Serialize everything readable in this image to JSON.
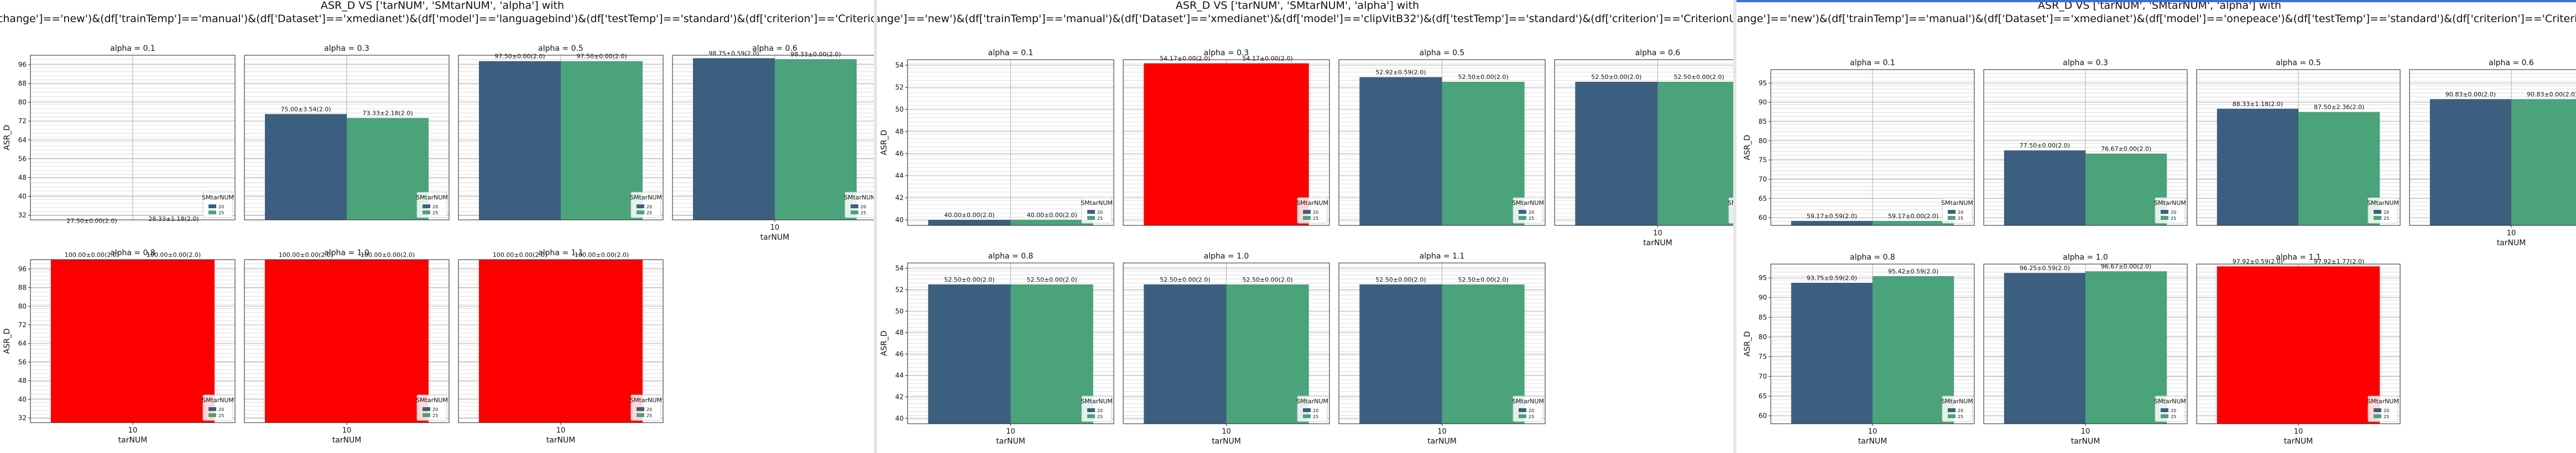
{
  "figures": [
    {
      "title_lines": [
        "ASR_D VS ['tarNUM', 'SMtarNUM', 'alpha'] with",
        "(df['change']=='new')&(df['trainTemp']=='manual')&(df['Dataset']=='xmedianet')&(df['model']=='languagebind')&(df['testTemp']=='standard')&(df['criterion']=='CriterionUNI')"
      ]
    },
    {
      "title_lines": [
        "ASR_D VS ['tarNUM', 'SMtarNUM', 'alpha'] with",
        "(df['change']=='new')&(df['trainTemp']=='manual')&(df['Dataset']=='xmedianet')&(df['model']=='clipVitB32')&(df['testTemp']=='standard')&(df['criterion']=='CriterionUNI')"
      ]
    },
    {
      "title_lines": [
        "ASR_D VS ['tarNUM', 'SMtarNUM', 'alpha'] with",
        "(df['change']=='new')&(df['trainTemp']=='manual')&(df['Dataset']=='xmedianet')&(df['model']=='onepeace')&(df['testTemp']=='standard')&(df['criterion']=='CriterionUNI')"
      ]
    }
  ],
  "colors": {
    "series_a": "#3d5f7f",
    "series_b": "#4aa37a",
    "highlight": "#ff0000",
    "grid": "#b0b0b0"
  },
  "chart_data": [
    {
      "type": "bar",
      "ylabel": "ASR_D",
      "xlabel": "tarNUM",
      "category": "10",
      "legend_title": "SMtarNUM",
      "legend_entries": [
        "20",
        "25"
      ],
      "ylim": [
        30,
        100
      ],
      "yticks": [
        32,
        40,
        48,
        56,
        64,
        72,
        80,
        88,
        96
      ],
      "subplots": [
        {
          "title": "alpha = 0.1",
          "values": [
            27.5,
            28.33
          ],
          "labels": [
            "27.50±0.00(2.0)",
            "28.33±1.18(2.0)"
          ],
          "highlight": false
        },
        {
          "title": "alpha = 0.3",
          "values": [
            75.0,
            73.33
          ],
          "labels": [
            "75.00±3.54(2.0)",
            "73.33±2.18(2.0)"
          ],
          "highlight": false
        },
        {
          "title": "alpha = 0.5",
          "values": [
            97.5,
            97.5
          ],
          "labels": [
            "97.50±0.00(2.0)",
            "97.50±0.00(2.0)"
          ],
          "highlight": false
        },
        {
          "title": "alpha = 0.6",
          "values": [
            98.75,
            98.33
          ],
          "labels": [
            "98.75±0.59(2.0)",
            "98.33±0.00(2.0)"
          ],
          "highlight": false
        },
        {
          "title": "alpha = 0.8",
          "values": [
            100.0,
            100.0
          ],
          "labels": [
            "100.00±0.00(2.0)",
            "100.00±0.00(2.0)"
          ],
          "highlight": true
        },
        {
          "title": "alpha = 1.0",
          "values": [
            100.0,
            100.0
          ],
          "labels": [
            "100.00±0.00(2.0)",
            "100.00±0.00(2.0)"
          ],
          "highlight": true
        },
        {
          "title": "alpha = 1.1",
          "values": [
            100.0,
            100.0
          ],
          "labels": [
            "100.00±0.00(2.0)",
            "100.00±0.00(2.0)"
          ],
          "highlight": true
        }
      ]
    },
    {
      "type": "bar",
      "ylabel": "ASR_D",
      "xlabel": "tarNUM",
      "category": "10",
      "legend_title": "SMtarNUM",
      "legend_entries": [
        "20",
        "25"
      ],
      "ylim": [
        39.5,
        54.5
      ],
      "yticks": [
        40,
        42,
        44,
        46,
        48,
        50,
        52,
        54
      ],
      "subplots": [
        {
          "title": "alpha = 0.1",
          "values": [
            40.0,
            40.0
          ],
          "labels": [
            "40.00±0.00(2.0)",
            "40.00±0.00(2.0)"
          ],
          "highlight": false
        },
        {
          "title": "alpha = 0.3",
          "values": [
            54.17,
            54.17
          ],
          "labels": [
            "54.17±0.00(2.0)",
            "54.17±0.00(2.0)"
          ],
          "highlight": true
        },
        {
          "title": "alpha = 0.5",
          "values": [
            52.92,
            52.5
          ],
          "labels": [
            "52.92±0.59(2.0)",
            "52.50±0.00(2.0)"
          ],
          "highlight": false
        },
        {
          "title": "alpha = 0.6",
          "values": [
            52.5,
            52.5
          ],
          "labels": [
            "52.50±0.00(2.0)",
            "52.50±0.00(2.0)"
          ],
          "highlight": false
        },
        {
          "title": "alpha = 0.8",
          "values": [
            52.5,
            52.5
          ],
          "labels": [
            "52.50±0.00(2.0)",
            "52.50±0.00(2.0)"
          ],
          "highlight": false
        },
        {
          "title": "alpha = 1.0",
          "values": [
            52.5,
            52.5
          ],
          "labels": [
            "52.50±0.00(2.0)",
            "52.50±0.00(2.0)"
          ],
          "highlight": false
        },
        {
          "title": "alpha = 1.1",
          "values": [
            52.5,
            52.5
          ],
          "labels": [
            "52.50±0.00(2.0)",
            "52.50±0.00(2.0)"
          ],
          "highlight": false
        }
      ]
    },
    {
      "type": "bar",
      "ylabel": "ASR_D",
      "xlabel": "tarNUM",
      "category": "10",
      "legend_title": "SMtarNUM",
      "legend_entries": [
        "20",
        "25"
      ],
      "ylim": [
        58,
        98.5
      ],
      "yticks": [
        60,
        65,
        70,
        75,
        80,
        85,
        90,
        95
      ],
      "subplots": [
        {
          "title": "alpha = 0.1",
          "values": [
            59.17,
            59.17
          ],
          "labels": [
            "59.17±0.59(2.0)",
            "59.17±0.00(2.0)"
          ],
          "highlight": false
        },
        {
          "title": "alpha = 0.3",
          "values": [
            77.5,
            76.67
          ],
          "labels": [
            "77.50±0.00(2.0)",
            "76.67±0.00(2.0)"
          ],
          "highlight": false
        },
        {
          "title": "alpha = 0.5",
          "values": [
            88.33,
            87.5
          ],
          "labels": [
            "88.33±1.18(2.0)",
            "87.50±2.36(2.0)"
          ],
          "highlight": false
        },
        {
          "title": "alpha = 0.6",
          "values": [
            90.83,
            90.83
          ],
          "labels": [
            "90.83±0.00(2.0)",
            "90.83±0.00(2.0)"
          ],
          "highlight": false
        },
        {
          "title": "alpha = 0.8",
          "values": [
            93.75,
            95.42
          ],
          "labels": [
            "93.75±0.59(2.0)",
            "95.42±0.59(2.0)"
          ],
          "highlight": false
        },
        {
          "title": "alpha = 1.0",
          "values": [
            96.25,
            96.67
          ],
          "labels": [
            "96.25±0.59(2.0)",
            "96.67±0.00(2.0)"
          ],
          "highlight": false
        },
        {
          "title": "alpha = 1.1",
          "values": [
            97.92,
            97.92
          ],
          "labels": [
            "97.92±0.59(2.0)",
            "97.92±1.77(2.0)"
          ],
          "highlight": true
        }
      ]
    }
  ]
}
